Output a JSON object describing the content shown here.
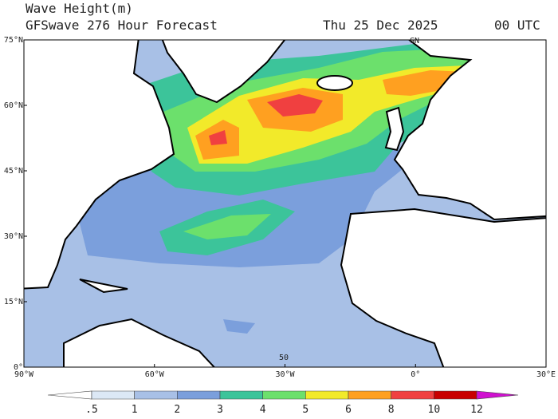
{
  "header": {
    "title": "Wave Height(m)",
    "subtitle": "GFSwave 276 Hour Forecast",
    "date": "Thu 25 Dec 2025",
    "time": "00 UTC"
  },
  "map": {
    "lat_labels": [
      "75°N",
      "60°N",
      "45°N",
      "30°N",
      "15°N",
      "0°"
    ],
    "lon_labels": [
      "90°W",
      "60°W",
      "30°W",
      "0°",
      "30°E"
    ],
    "place_labels": [
      "GN",
      "50"
    ]
  },
  "colorbar": {
    "labels": [
      ".5",
      "1",
      "2",
      "3",
      "4",
      "5",
      "6",
      "8",
      "10",
      "12"
    ],
    "colors": [
      "#ffffff",
      "#dce8f5",
      "#a8c0e6",
      "#7b9fdc",
      "#3cc49a",
      "#6ce06c",
      "#f2ea2a",
      "#ffa020",
      "#f04040",
      "#c80000",
      "#d010d0"
    ]
  }
}
